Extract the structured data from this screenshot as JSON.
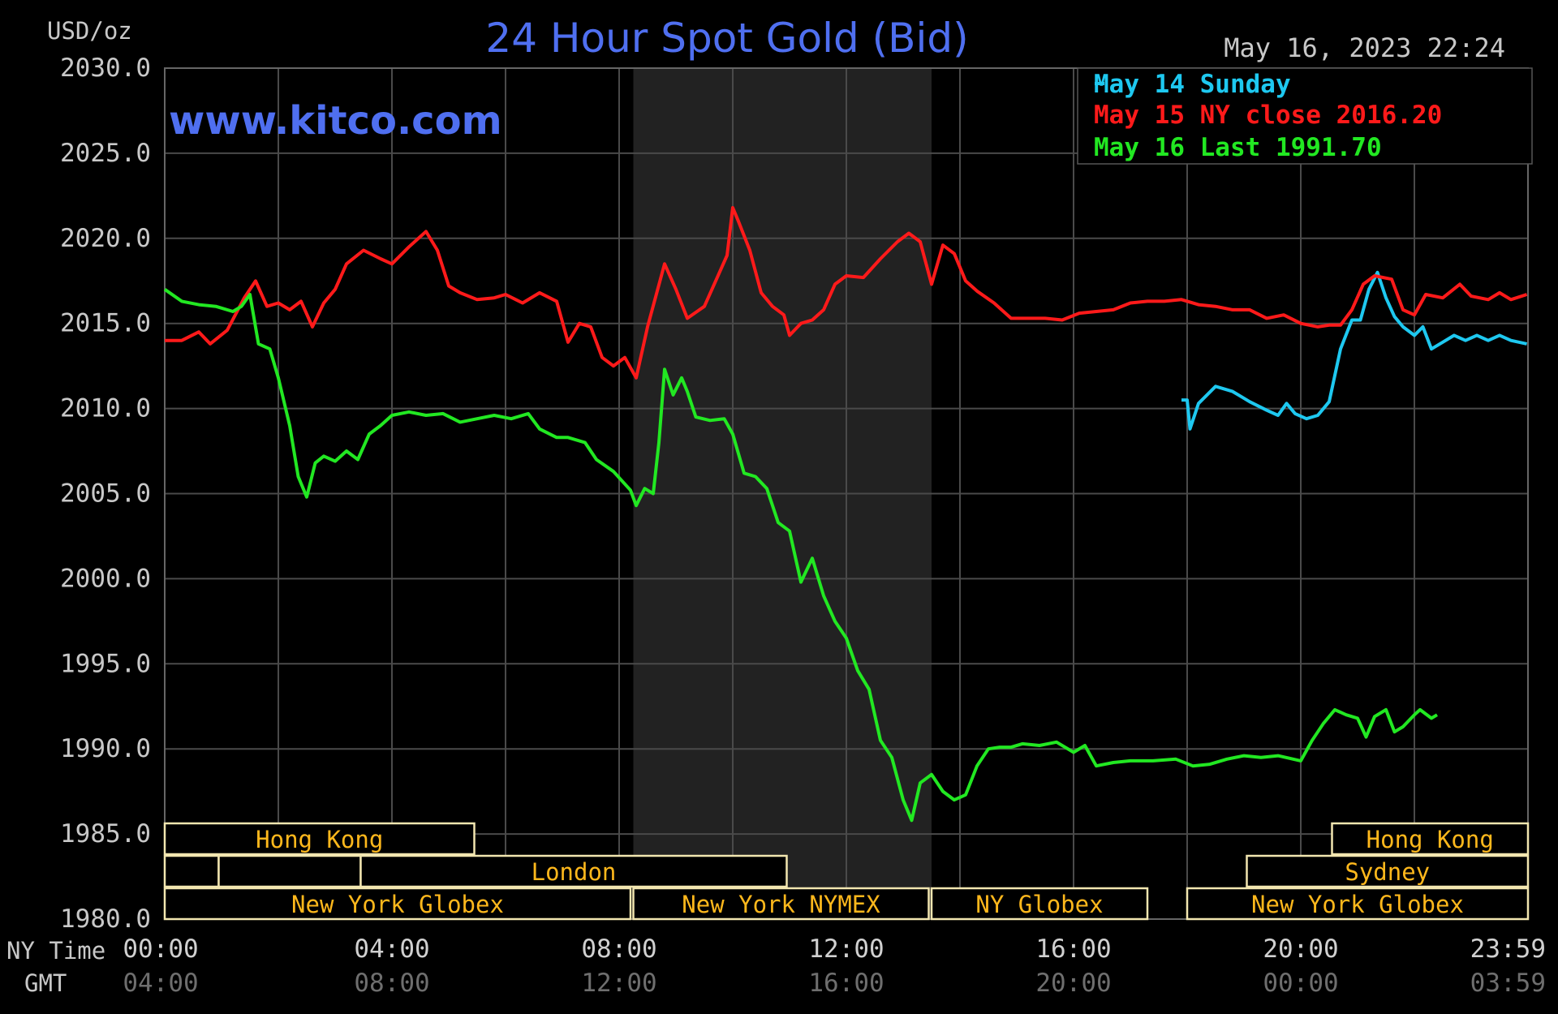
{
  "chart_data": {
    "type": "line",
    "title": "24 Hour Spot Gold (Bid)",
    "website": "www.kitco.com",
    "unit_label": "USD/oz",
    "timestamp": "May 16, 2023 22:24",
    "ylim": [
      1980,
      2030
    ],
    "y_ticks": [
      "2030.0",
      "2025.0",
      "2020.0",
      "2015.0",
      "2010.0",
      "2005.0",
      "2000.0",
      "1995.0",
      "1990.0",
      "1985.0",
      "1980.0"
    ],
    "x_axis_labels": {
      "ny": "NY Time",
      "gmt": "GMT"
    },
    "x_ticks_ny": [
      "00:00",
      "04:00",
      "08:00",
      "12:00",
      "16:00",
      "20:00",
      "23:59"
    ],
    "x_ticks_gmt": [
      "04:00",
      "08:00",
      "12:00",
      "16:00",
      "20:00",
      "00:00",
      "03:59"
    ],
    "x_tick_hours": [
      0,
      4,
      8,
      12,
      16,
      20,
      23.983
    ],
    "grid": true,
    "shaded_region_hours": [
      8.25,
      13.5
    ],
    "legend": [
      {
        "label": "May 14 Sunday",
        "color": "#1ec8f0"
      },
      {
        "label": "May 15 NY close 2016.20",
        "color": "#ff1a1a"
      },
      {
        "label": "May 16 Last 1991.70",
        "color": "#22e822"
      }
    ],
    "series": [
      {
        "name": "May 14 Sunday",
        "color": "#1ec8f0",
        "points": [
          [
            17.9,
            2010.5
          ],
          [
            18.0,
            2010.5
          ],
          [
            18.05,
            2008.8
          ],
          [
            18.2,
            2010.3
          ],
          [
            18.5,
            2011.3
          ],
          [
            18.8,
            2011.0
          ],
          [
            19.1,
            2010.4
          ],
          [
            19.4,
            2009.9
          ],
          [
            19.6,
            2009.6
          ],
          [
            19.75,
            2010.3
          ],
          [
            19.9,
            2009.7
          ],
          [
            20.1,
            2009.4
          ],
          [
            20.3,
            2009.6
          ],
          [
            20.5,
            2010.4
          ],
          [
            20.7,
            2013.5
          ],
          [
            20.9,
            2015.2
          ],
          [
            21.05,
            2015.2
          ],
          [
            21.2,
            2017.0
          ],
          [
            21.35,
            2018.0
          ],
          [
            21.5,
            2016.5
          ],
          [
            21.65,
            2015.4
          ],
          [
            21.8,
            2014.8
          ],
          [
            22.0,
            2014.3
          ],
          [
            22.15,
            2014.8
          ],
          [
            22.3,
            2013.5
          ],
          [
            22.5,
            2013.9
          ],
          [
            22.7,
            2014.3
          ],
          [
            22.9,
            2014.0
          ],
          [
            23.1,
            2014.3
          ],
          [
            23.3,
            2014.0
          ],
          [
            23.5,
            2014.3
          ],
          [
            23.7,
            2014.0
          ],
          [
            23.98,
            2013.8
          ]
        ]
      },
      {
        "name": "May 15 NY close 2016.20",
        "color": "#ff1a1a",
        "points": [
          [
            0,
            2014.0
          ],
          [
            0.3,
            2014.0
          ],
          [
            0.6,
            2014.5
          ],
          [
            0.8,
            2013.8
          ],
          [
            1.1,
            2014.6
          ],
          [
            1.4,
            2016.5
          ],
          [
            1.6,
            2017.5
          ],
          [
            1.8,
            2016.0
          ],
          [
            2.0,
            2016.2
          ],
          [
            2.2,
            2015.8
          ],
          [
            2.4,
            2016.3
          ],
          [
            2.6,
            2014.8
          ],
          [
            2.8,
            2016.2
          ],
          [
            3.0,
            2017.0
          ],
          [
            3.2,
            2018.5
          ],
          [
            3.5,
            2019.3
          ],
          [
            3.8,
            2018.8
          ],
          [
            4.0,
            2018.5
          ],
          [
            4.3,
            2019.5
          ],
          [
            4.6,
            2020.4
          ],
          [
            4.8,
            2019.3
          ],
          [
            5.0,
            2017.2
          ],
          [
            5.2,
            2016.8
          ],
          [
            5.5,
            2016.4
          ],
          [
            5.8,
            2016.5
          ],
          [
            6.0,
            2016.7
          ],
          [
            6.3,
            2016.2
          ],
          [
            6.6,
            2016.8
          ],
          [
            6.9,
            2016.3
          ],
          [
            7.1,
            2013.9
          ],
          [
            7.3,
            2015.0
          ],
          [
            7.5,
            2014.8
          ],
          [
            7.7,
            2013.0
          ],
          [
            7.9,
            2012.5
          ],
          [
            8.1,
            2013.0
          ],
          [
            8.3,
            2011.8
          ],
          [
            8.5,
            2014.8
          ],
          [
            8.8,
            2018.5
          ],
          [
            9.0,
            2017.0
          ],
          [
            9.2,
            2015.3
          ],
          [
            9.5,
            2016.0
          ],
          [
            9.7,
            2017.5
          ],
          [
            9.9,
            2019.0
          ],
          [
            10.0,
            2021.8
          ],
          [
            10.1,
            2021.0
          ],
          [
            10.3,
            2019.3
          ],
          [
            10.5,
            2016.8
          ],
          [
            10.7,
            2016.0
          ],
          [
            10.9,
            2015.5
          ],
          [
            11.0,
            2014.3
          ],
          [
            11.2,
            2015.0
          ],
          [
            11.4,
            2015.2
          ],
          [
            11.6,
            2015.8
          ],
          [
            11.8,
            2017.3
          ],
          [
            12.0,
            2017.8
          ],
          [
            12.3,
            2017.7
          ],
          [
            12.6,
            2018.8
          ],
          [
            12.9,
            2019.8
          ],
          [
            13.1,
            2020.3
          ],
          [
            13.3,
            2019.8
          ],
          [
            13.5,
            2017.3
          ],
          [
            13.7,
            2019.6
          ],
          [
            13.9,
            2019.1
          ],
          [
            14.1,
            2017.5
          ],
          [
            14.3,
            2016.9
          ],
          [
            14.6,
            2016.2
          ],
          [
            14.9,
            2015.3
          ],
          [
            15.2,
            2015.3
          ],
          [
            15.5,
            2015.3
          ],
          [
            15.8,
            2015.2
          ],
          [
            16.1,
            2015.6
          ],
          [
            16.4,
            2015.7
          ],
          [
            16.7,
            2015.8
          ],
          [
            17.0,
            2016.2
          ],
          [
            17.3,
            2016.3
          ],
          [
            17.6,
            2016.3
          ],
          [
            17.9,
            2016.4
          ],
          [
            18.2,
            2016.1
          ],
          [
            18.5,
            2016.0
          ],
          [
            18.8,
            2015.8
          ],
          [
            19.1,
            2015.8
          ],
          [
            19.4,
            2015.3
          ],
          [
            19.7,
            2015.5
          ],
          [
            20.0,
            2015.0
          ],
          [
            20.3,
            2014.8
          ],
          [
            20.5,
            2014.9
          ],
          [
            20.7,
            2014.9
          ],
          [
            20.9,
            2015.8
          ],
          [
            21.1,
            2017.3
          ],
          [
            21.3,
            2017.8
          ],
          [
            21.6,
            2017.6
          ],
          [
            21.8,
            2015.8
          ],
          [
            22.0,
            2015.5
          ],
          [
            22.2,
            2016.7
          ],
          [
            22.5,
            2016.5
          ],
          [
            22.8,
            2017.3
          ],
          [
            23.0,
            2016.6
          ],
          [
            23.3,
            2016.4
          ],
          [
            23.5,
            2016.8
          ],
          [
            23.7,
            2016.4
          ],
          [
            23.98,
            2016.7
          ]
        ]
      },
      {
        "name": "May 16 Last 1991.70",
        "color": "#22e822",
        "points": [
          [
            0,
            2017.0
          ],
          [
            0.3,
            2016.3
          ],
          [
            0.6,
            2016.1
          ],
          [
            0.9,
            2016.0
          ],
          [
            1.2,
            2015.7
          ],
          [
            1.35,
            2016.0
          ],
          [
            1.5,
            2016.7
          ],
          [
            1.65,
            2013.8
          ],
          [
            1.85,
            2013.5
          ],
          [
            2.0,
            2011.8
          ],
          [
            2.2,
            2009.0
          ],
          [
            2.35,
            2006.0
          ],
          [
            2.5,
            2004.8
          ],
          [
            2.65,
            2006.8
          ],
          [
            2.8,
            2007.2
          ],
          [
            3.0,
            2006.9
          ],
          [
            3.2,
            2007.5
          ],
          [
            3.4,
            2007.0
          ],
          [
            3.6,
            2008.5
          ],
          [
            3.8,
            2009.0
          ],
          [
            4.0,
            2009.6
          ],
          [
            4.3,
            2009.8
          ],
          [
            4.6,
            2009.6
          ],
          [
            4.9,
            2009.7
          ],
          [
            5.2,
            2009.2
          ],
          [
            5.5,
            2009.4
          ],
          [
            5.8,
            2009.6
          ],
          [
            6.1,
            2009.4
          ],
          [
            6.4,
            2009.7
          ],
          [
            6.6,
            2008.8
          ],
          [
            6.9,
            2008.3
          ],
          [
            7.1,
            2008.3
          ],
          [
            7.4,
            2008.0
          ],
          [
            7.6,
            2007.0
          ],
          [
            7.9,
            2006.3
          ],
          [
            8.2,
            2005.2
          ],
          [
            8.3,
            2004.3
          ],
          [
            8.45,
            2005.3
          ],
          [
            8.6,
            2005.0
          ],
          [
            8.7,
            2008.0
          ],
          [
            8.8,
            2012.3
          ],
          [
            8.95,
            2010.8
          ],
          [
            9.1,
            2011.8
          ],
          [
            9.2,
            2011.0
          ],
          [
            9.35,
            2009.5
          ],
          [
            9.6,
            2009.3
          ],
          [
            9.85,
            2009.4
          ],
          [
            10.0,
            2008.5
          ],
          [
            10.2,
            2006.2
          ],
          [
            10.4,
            2006.0
          ],
          [
            10.6,
            2005.3
          ],
          [
            10.8,
            2003.3
          ],
          [
            11.0,
            2002.8
          ],
          [
            11.2,
            1999.8
          ],
          [
            11.4,
            2001.2
          ],
          [
            11.6,
            1999.0
          ],
          [
            11.8,
            1997.5
          ],
          [
            12.0,
            1996.5
          ],
          [
            12.2,
            1994.6
          ],
          [
            12.4,
            1993.5
          ],
          [
            12.6,
            1990.5
          ],
          [
            12.8,
            1989.5
          ],
          [
            13.0,
            1987.0
          ],
          [
            13.15,
            1985.8
          ],
          [
            13.3,
            1988.0
          ],
          [
            13.5,
            1988.5
          ],
          [
            13.7,
            1987.5
          ],
          [
            13.9,
            1987.0
          ],
          [
            14.1,
            1987.3
          ],
          [
            14.3,
            1989.0
          ],
          [
            14.5,
            1990.0
          ],
          [
            14.7,
            1990.1
          ],
          [
            14.9,
            1990.1
          ],
          [
            15.1,
            1990.3
          ],
          [
            15.4,
            1990.2
          ],
          [
            15.7,
            1990.4
          ],
          [
            16.0,
            1989.8
          ],
          [
            16.2,
            1990.2
          ],
          [
            16.4,
            1989.0
          ],
          [
            16.7,
            1989.2
          ],
          [
            17.0,
            1989.3
          ],
          [
            17.4,
            1989.3
          ],
          [
            17.8,
            1989.4
          ],
          [
            18.1,
            1989.0
          ],
          [
            18.4,
            1989.1
          ],
          [
            18.7,
            1989.4
          ],
          [
            19.0,
            1989.6
          ],
          [
            19.3,
            1989.5
          ],
          [
            19.6,
            1989.6
          ],
          [
            20.0,
            1989.3
          ],
          [
            20.2,
            1990.5
          ],
          [
            20.4,
            1991.5
          ],
          [
            20.6,
            1992.3
          ],
          [
            20.8,
            1992.0
          ],
          [
            21.0,
            1991.8
          ],
          [
            21.15,
            1990.7
          ],
          [
            21.3,
            1991.9
          ],
          [
            21.5,
            1992.3
          ],
          [
            21.65,
            1991.0
          ],
          [
            21.8,
            1991.3
          ],
          [
            22.0,
            1992.0
          ],
          [
            22.1,
            1992.3
          ],
          [
            22.3,
            1991.8
          ],
          [
            22.4,
            1992.0
          ]
        ]
      }
    ],
    "session_bars": [
      {
        "label": "Hong Kong",
        "start": 0,
        "end": 5.45,
        "row": 0,
        "show_label": true
      },
      {
        "label": "Hong Kong",
        "start": 20.55,
        "end": 24,
        "row": 0,
        "show_label": true
      },
      {
        "label": "",
        "start": 0,
        "end": 0.95,
        "row": 1,
        "show_label": false
      },
      {
        "label": "",
        "start": 0.95,
        "end": 3.45,
        "row": 1,
        "show_label": false
      },
      {
        "label": "London",
        "start": 3.45,
        "end": 10.95,
        "row": 1,
        "show_label": true
      },
      {
        "label": "Sydney",
        "start": 19.05,
        "end": 24,
        "row": 1,
        "show_label": true
      },
      {
        "label": "New York Globex",
        "start": 0,
        "end": 8.2,
        "row": 2,
        "show_label": true
      },
      {
        "label": "New York NYMEX",
        "start": 8.25,
        "end": 13.45,
        "row": 2,
        "show_label": true
      },
      {
        "label": "NY Globex",
        "start": 13.5,
        "end": 17.3,
        "row": 2,
        "show_label": true
      },
      {
        "label": "New York Globex",
        "start": 18.0,
        "end": 24,
        "row": 2,
        "show_label": true
      }
    ]
  }
}
